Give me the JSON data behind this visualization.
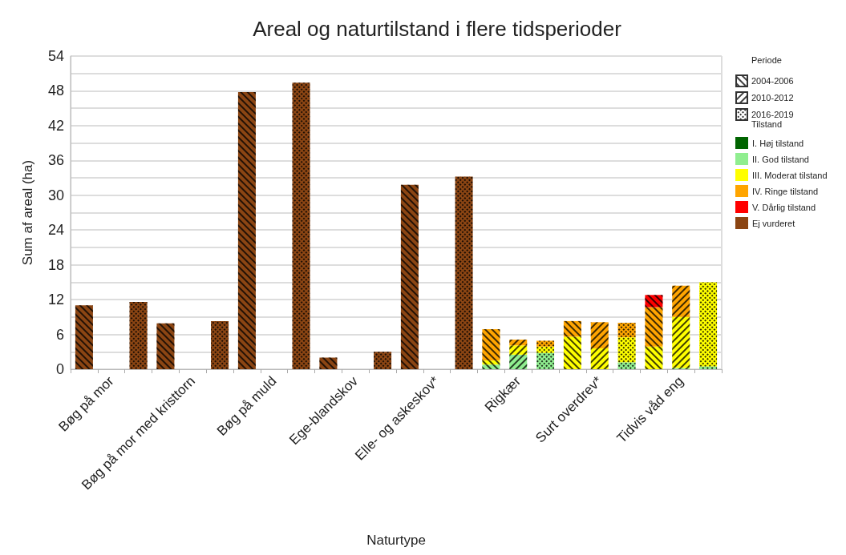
{
  "chart_data": {
    "type": "bar",
    "title": "Areal og naturtilstand i flere tidsperioder",
    "xlabel": "Naturtype",
    "ylabel": "Sum af areal (ha)",
    "legend_title": [
      "Periode",
      "Tilstand"
    ],
    "categories": [
      null,
      "Bøg på mor",
      null,
      null,
      "Bøg på mor med kristtorn",
      null,
      null,
      "Bøg på muld",
      null,
      null,
      "Ege-blandskov",
      null,
      null,
      "Elle- og askeskov*",
      null,
      null,
      "Rigkær",
      null,
      null,
      "Surt overdrev*",
      null,
      null,
      "Tidvis våd eng",
      null
    ],
    "stacked": true,
    "series": [
      {
        "name": "2004-2006",
        "values": [
          null,
          null,
          null,
          null,
          null,
          null,
          null,
          null,
          null,
          null,
          null,
          null,
          null,
          null,
          null,
          null,
          null,
          null,
          null,
          null,
          null,
          null,
          null,
          null
        ]
      },
      {
        "name": "2010-2012",
        "values": [
          null,
          null,
          null,
          null,
          null,
          null,
          null,
          null,
          null,
          null,
          null,
          null,
          null,
          null,
          null,
          null,
          null,
          null,
          null,
          null,
          null,
          null,
          null,
          null
        ]
      },
      {
        "name": "2016-2019",
        "values": [
          null,
          null,
          null,
          null,
          null,
          null,
          null,
          null,
          null,
          null,
          null,
          null,
          null,
          null,
          null,
          null,
          null,
          null,
          null,
          null,
          null,
          null,
          null,
          null
        ]
      },
      {
        "name": "I. Høj tilstand",
        "color": "#006400",
        "values": [
          null,
          null,
          null,
          null,
          null,
          null,
          null,
          null,
          null,
          null,
          null,
          null,
          null,
          null,
          null,
          null,
          null,
          null,
          null,
          null,
          null,
          null,
          null,
          null
        ]
      },
      {
        "name": "II. God tilstand",
        "color": "#90ee90",
        "values": [
          null,
          null,
          null,
          null,
          null,
          null,
          null,
          null,
          null,
          null,
          null,
          null,
          null,
          null,
          null,
          0.8,
          2.5,
          2.8,
          null,
          null,
          1.2,
          null,
          0.2,
          0.5
        ]
      },
      {
        "name": "III. Moderat tilstand",
        "color": "#ffff00",
        "values": [
          null,
          null,
          null,
          null,
          null,
          null,
          null,
          null,
          null,
          null,
          null,
          null,
          null,
          null,
          null,
          0.7,
          1.6,
          1.1,
          5.6,
          3.6,
          4.3,
          3.9,
          8.8,
          14.5
        ]
      },
      {
        "name": "IV. Ringe tilstand",
        "color": "#ffa500",
        "values": [
          null,
          null,
          null,
          null,
          null,
          null,
          null,
          null,
          null,
          null,
          null,
          null,
          null,
          null,
          null,
          5.4,
          1.0,
          1.0,
          2.7,
          4.5,
          2.5,
          6.8,
          5.4,
          null
        ]
      },
      {
        "name": "V. Dårlig tilstand",
        "color": "#ff0000",
        "values": [
          null,
          null,
          null,
          null,
          null,
          null,
          null,
          null,
          null,
          null,
          null,
          null,
          null,
          null,
          null,
          null,
          null,
          null,
          null,
          null,
          null,
          2.1,
          null,
          null
        ]
      },
      {
        "name": "Ej vurderet",
        "color": "#8b4513",
        "values": [
          11.0,
          null,
          11.6,
          7.9,
          null,
          8.3,
          47.8,
          null,
          49.4,
          2.0,
          null,
          3.0,
          31.8,
          null,
          33.2,
          null,
          null,
          null,
          null,
          null,
          null,
          null,
          null,
          null
        ]
      }
    ],
    "ylim": [
      0,
      54
    ],
    "yticks": [
      0,
      {
        "value": 3,
        "label": null
      },
      6,
      {
        "value": 9,
        "label": null
      },
      12,
      {
        "value": 15,
        "label": null
      },
      18,
      {
        "value": 21,
        "label": null
      },
      24,
      {
        "value": 27,
        "label": null
      },
      30,
      {
        "value": 33,
        "label": null
      },
      36,
      {
        "value": 39,
        "label": null
      },
      42,
      {
        "value": 45,
        "label": null
      },
      48,
      {
        "value": 51,
        "label": null
      },
      54
    ],
    "grid": "y",
    "legend": "right"
  }
}
